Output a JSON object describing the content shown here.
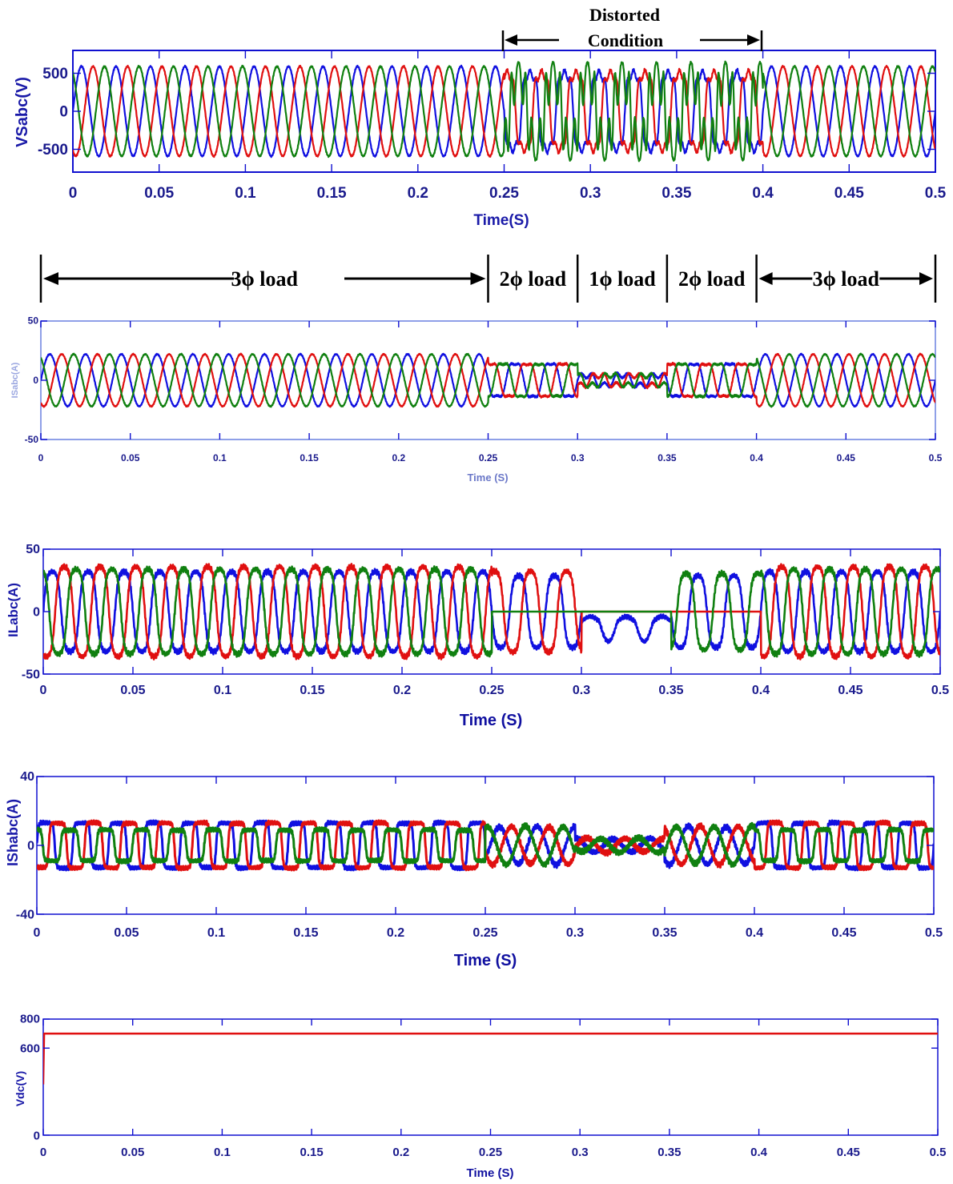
{
  "colors": {
    "phase_a": "#1010e0",
    "phase_b": "#e01010",
    "phase_c": "#108010",
    "frame": "#1010d0"
  },
  "annotations": {
    "distorted_line1": "Distorted",
    "distorted_line2": "Condition",
    "regions": [
      {
        "label": "3ϕ load",
        "t0": 0,
        "t1": 0.25
      },
      {
        "label": "2ϕ load",
        "t0": 0.25,
        "t1": 0.3
      },
      {
        "label": "1ϕ load",
        "t0": 0.3,
        "t1": 0.35
      },
      {
        "label": "2ϕ load",
        "t0": 0.35,
        "t1": 0.4
      },
      {
        "label": "3ϕ load",
        "t0": 0.4,
        "t1": 0.5
      }
    ]
  },
  "chart_data": [
    {
      "id": "vs",
      "type": "line",
      "ylabel": "VSabc(V)",
      "xlabel": "Time(S)",
      "xlim": [
        0,
        0.5
      ],
      "ylim": [
        -800,
        800
      ],
      "x_ticks": [
        "0",
        "0.05",
        "0.1",
        "0.15",
        "0.2",
        "0.25",
        "0.3",
        "0.35",
        "0.4",
        "0.45",
        "0.5"
      ],
      "y_ticks": [
        {
          "v": 500,
          "label": "500"
        },
        {
          "v": 0,
          "label": "0"
        },
        {
          "v": -500,
          "label": "-500"
        }
      ],
      "series": [
        {
          "phase": "a",
          "amplitude": 590,
          "frequency_hz": 50
        },
        {
          "phase": "b",
          "amplitude": 590,
          "frequency_hz": 50
        },
        {
          "phase": "c",
          "amplitude": 590,
          "frequency_hz": 50
        }
      ],
      "distortion_window": [
        0.25,
        0.4
      ]
    },
    {
      "id": "is",
      "type": "line",
      "ylabel": "ISabc(A)",
      "xlabel": "Time (S)",
      "xlim": [
        0,
        0.5
      ],
      "ylim": [
        -50,
        50
      ],
      "x_ticks": [
        "0",
        "0.05",
        "0.1",
        "0.15",
        "0.2",
        "0.25",
        "0.3",
        "0.35",
        "0.4",
        "0.45",
        "0.5"
      ],
      "y_ticks": [
        {
          "v": 50,
          "label": "50"
        },
        {
          "v": 0,
          "label": "0"
        },
        {
          "v": -50,
          "label": "-50"
        }
      ],
      "series": [
        {
          "phase": "a",
          "amplitude": 22
        },
        {
          "phase": "b",
          "amplitude": 22
        },
        {
          "phase": "c",
          "amplitude": 22
        }
      ],
      "segments": [
        {
          "t0": 0,
          "t1": 0.25,
          "amplitude": 22
        },
        {
          "t0": 0.25,
          "t1": 0.3,
          "amplitude": 16
        },
        {
          "t0": 0.3,
          "t1": 0.35,
          "amplitude": 5
        },
        {
          "t0": 0.35,
          "t1": 0.4,
          "amplitude": 16
        },
        {
          "t0": 0.4,
          "t1": 0.5,
          "amplitude": 22
        }
      ]
    },
    {
      "id": "il",
      "type": "line",
      "ylabel": "ILabc(A)",
      "xlabel": "Time (S)",
      "xlim": [
        0,
        0.5
      ],
      "ylim": [
        -50,
        50
      ],
      "x_ticks": [
        "0",
        "0.05",
        "0.1",
        "0.15",
        "0.2",
        "0.25",
        "0.3",
        "0.35",
        "0.4",
        "0.45",
        "0.5"
      ],
      "y_ticks": [
        {
          "v": 50,
          "label": "50"
        },
        {
          "v": 0,
          "label": "0"
        },
        {
          "v": -50,
          "label": "-50"
        }
      ],
      "series": [
        {
          "phase": "a",
          "amplitude": 32
        },
        {
          "phase": "b",
          "amplitude": 36
        },
        {
          "phase": "c",
          "amplitude": 34
        }
      ],
      "segments": [
        {
          "t0": 0,
          "t1": 0.25,
          "active": [
            "a",
            "b",
            "c"
          ]
        },
        {
          "t0": 0.25,
          "t1": 0.3,
          "active": [
            "a",
            "b"
          ]
        },
        {
          "t0": 0.3,
          "t1": 0.35,
          "active": [
            "a"
          ]
        },
        {
          "t0": 0.35,
          "t1": 0.4,
          "active": [
            "a",
            "c"
          ]
        },
        {
          "t0": 0.4,
          "t1": 0.5,
          "active": [
            "a",
            "b",
            "c"
          ]
        }
      ]
    },
    {
      "id": "ish",
      "type": "line",
      "ylabel": "IShabc(A)",
      "xlabel": "Time (S)",
      "xlim": [
        0,
        0.5
      ],
      "ylim": [
        -40,
        40
      ],
      "x_ticks": [
        "0",
        "0.05",
        "0.1",
        "0.15",
        "0.2",
        "0.25",
        "0.3",
        "0.35",
        "0.4",
        "0.45",
        "0.5"
      ],
      "y_ticks": [
        {
          "v": 40,
          "label": "40"
        },
        {
          "v": 0,
          "label": "0"
        },
        {
          "v": -40,
          "label": "-40"
        }
      ],
      "series": [
        {
          "phase": "a",
          "amplitude": 13
        },
        {
          "phase": "b",
          "amplitude": 13
        },
        {
          "phase": "c",
          "amplitude": 9
        }
      ]
    },
    {
      "id": "vdc",
      "type": "line",
      "ylabel": "Vdc(V)",
      "xlabel": "Time (S)",
      "xlim": [
        0,
        0.5
      ],
      "ylim": [
        0,
        800
      ],
      "x_ticks": [
        "0",
        "0.05",
        "0.1",
        "0.15",
        "0.2",
        "0.25",
        "0.3",
        "0.35",
        "0.4",
        "0.45",
        "0.5"
      ],
      "y_ticks": [
        {
          "v": 800,
          "label": "800"
        },
        {
          "v": 600,
          "label": "600"
        },
        {
          "v": 0,
          "label": "0"
        }
      ],
      "series": [
        {
          "phase": "dc",
          "points": [
            [
              0,
              350
            ],
            [
              0.0005,
              700
            ],
            [
              0.5,
              700
            ]
          ]
        }
      ]
    }
  ]
}
